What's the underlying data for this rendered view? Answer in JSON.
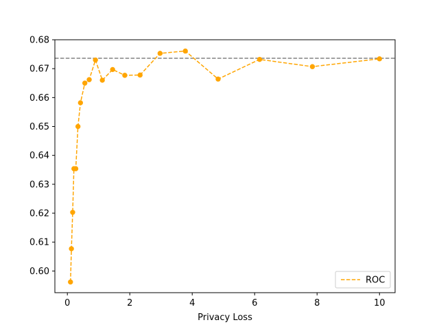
{
  "chart_data": {
    "type": "line",
    "title": "",
    "xlabel": "Privacy Loss",
    "ylabel": "",
    "xlim": [
      -0.4,
      10.5
    ],
    "ylim": [
      0.5925,
      0.68
    ],
    "xticks": [
      0,
      2,
      4,
      6,
      8,
      10
    ],
    "xtick_labels": [
      "0",
      "2",
      "4",
      "6",
      "8",
      "10"
    ],
    "yticks": [
      0.6,
      0.61,
      0.62,
      0.63,
      0.64,
      0.65,
      0.66,
      0.67,
      0.68
    ],
    "ytick_labels": [
      "0.60",
      "0.61",
      "0.62",
      "0.63",
      "0.64",
      "0.65",
      "0.66",
      "0.67",
      "0.68"
    ],
    "grid": false,
    "legend_position": "lower-right",
    "series": [
      {
        "name": "ROC",
        "color": "#ffa500",
        "line_style": "dashed",
        "marker": "circle",
        "x": [
          0.1,
          0.13,
          0.17,
          0.21,
          0.27,
          0.34,
          0.42,
          0.56,
          0.7,
          0.9,
          1.12,
          1.45,
          1.84,
          2.33,
          2.97,
          3.78,
          4.83,
          6.16,
          7.85,
          10.0
        ],
        "y": [
          0.5962,
          0.6077,
          0.6203,
          0.6354,
          0.6354,
          0.65,
          0.6582,
          0.665,
          0.6662,
          0.673,
          0.666,
          0.6697,
          0.6677,
          0.6678,
          0.6753,
          0.6761,
          0.6664,
          0.6732,
          0.6707,
          0.6734
        ]
      }
    ],
    "reference_line": {
      "orientation": "horizontal",
      "y": 0.6736,
      "color": "#808080",
      "line_style": "dashed"
    }
  }
}
